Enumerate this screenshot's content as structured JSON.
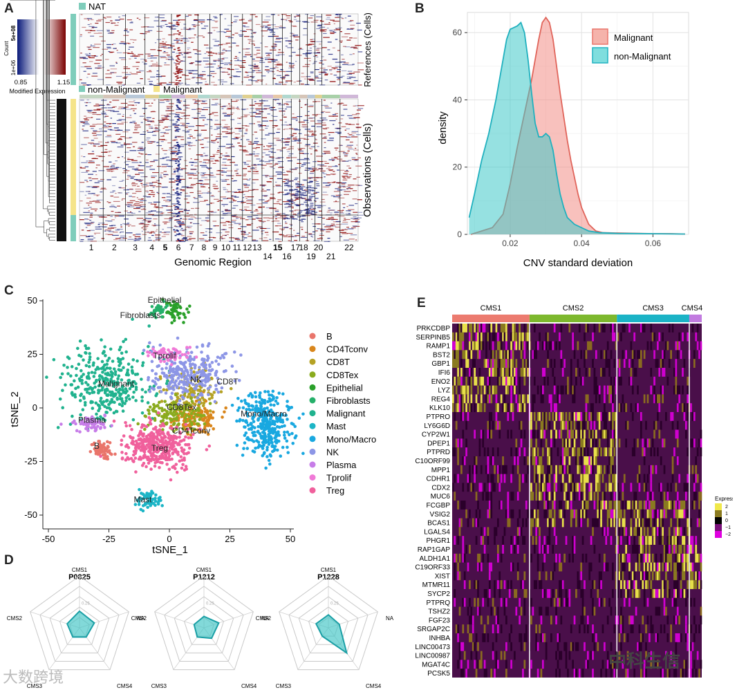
{
  "panels": {
    "a": "A",
    "b": "B",
    "c": "C",
    "d": "D",
    "e": "E"
  },
  "panelA": {
    "ref_group": "NAT",
    "obs_groups": [
      "non-Malignant",
      "Malignant"
    ],
    "colorkey": {
      "count_label": "Count",
      "count_hi": "5e+08",
      "count_lo": "1e+06",
      "min": "0.85",
      "max": "1.15",
      "label": "Modified Expression"
    },
    "ylabel_ref": "References (Cells)",
    "ylabel_obs": "Observations (Cells)",
    "xlabel": "Genomic Region",
    "chromosomes": [
      "1",
      "2",
      "3",
      "4",
      "5",
      "6",
      "7",
      "8",
      "9",
      "10",
      "11",
      "12",
      "13",
      "14",
      "15",
      "16",
      "17",
      "18",
      "19",
      "20",
      "21",
      "22"
    ],
    "bold_chromosomes": [
      "5",
      "15"
    ],
    "colors": {
      "nat": "#7fcdbb",
      "malignant": "#f5e48a",
      "high": "#8b0000",
      "low": "#1a237e"
    }
  },
  "chart_data": [
    {
      "id": "B",
      "type": "area",
      "title": "",
      "xlabel": "CNV standard deviation",
      "ylabel": "density",
      "xlim": [
        0.008,
        0.07
      ],
      "ylim": [
        0,
        66
      ],
      "xticks": [
        0.02,
        0.04,
        0.06
      ],
      "xtick_labels": [
        "0.02",
        "0.04",
        "0.06"
      ],
      "yticks": [
        0,
        20,
        40,
        60
      ],
      "legend_position": "top-right",
      "series": [
        {
          "name": "Malignant",
          "color": "#f08080",
          "x": [
            0.009,
            0.012,
            0.015,
            0.018,
            0.02,
            0.022,
            0.024,
            0.026,
            0.027,
            0.028,
            0.029,
            0.03,
            0.031,
            0.032,
            0.033,
            0.034,
            0.035,
            0.036,
            0.037,
            0.038,
            0.039,
            0.04,
            0.042,
            0.044,
            0.046,
            0.05,
            0.055,
            0.06,
            0.065,
            0.069
          ],
          "y": [
            0,
            1,
            2,
            6,
            15,
            26,
            36,
            46,
            52,
            58,
            63,
            64.5,
            63,
            58,
            50,
            42,
            35,
            28,
            22,
            17,
            12,
            8,
            3,
            1,
            0.5,
            0.4,
            0.3,
            0.2,
            0.2,
            0.1
          ]
        },
        {
          "name": "non-Malignant",
          "color": "#40c8c8",
          "x": [
            0.0085,
            0.01,
            0.012,
            0.014,
            0.016,
            0.018,
            0.019,
            0.02,
            0.021,
            0.022,
            0.023,
            0.024,
            0.025,
            0.026,
            0.027,
            0.028,
            0.029,
            0.03,
            0.031,
            0.032,
            0.033,
            0.034,
            0.035,
            0.036,
            0.038,
            0.04,
            0.042,
            0.045,
            0.05,
            0.06,
            0.069
          ],
          "y": [
            5,
            12,
            22,
            30,
            40,
            52,
            58,
            61,
            61.5,
            62,
            63,
            60,
            52,
            42,
            33,
            29,
            29,
            30,
            29,
            25,
            18,
            12,
            8,
            5,
            3,
            2,
            1,
            0.5,
            0.3,
            0.2,
            0.1
          ]
        }
      ]
    },
    {
      "id": "C",
      "type": "scatter",
      "title": "",
      "xlabel": "tSNE_1",
      "ylabel": "tSNE_2",
      "xlim": [
        -52,
        52
      ],
      "ylim": [
        -53,
        55
      ],
      "xticks": [
        -50,
        -25,
        0,
        25,
        50
      ],
      "yticks": [
        -50,
        -25,
        0,
        25,
        50
      ],
      "legend_position": "right",
      "series": [
        {
          "name": "B",
          "color": "#e9756b",
          "cx": -28,
          "cy": -19,
          "sx": 1.8,
          "sy": 2.2,
          "n": 70
        },
        {
          "name": "CD4Tconv",
          "color": "#d9861c",
          "cx": 10,
          "cy": -5,
          "sx": 5,
          "sy": 4,
          "n": 140
        },
        {
          "name": "CD8T",
          "color": "#b5a225",
          "cx": 10,
          "cy": 8,
          "sx": 6,
          "sy": 5,
          "n": 120
        },
        {
          "name": "CD8Tex",
          "color": "#8aab1e",
          "cx": 2,
          "cy": -3,
          "sx": 6,
          "sy": 4,
          "n": 140
        },
        {
          "name": "Epithelial",
          "color": "#2aa02a",
          "cx": 2,
          "cy": 45,
          "sx": 2.5,
          "sy": 2,
          "n": 50
        },
        {
          "name": "Fibroblasts",
          "color": "#25b06a",
          "cx": -5,
          "cy": 46,
          "sx": 1.6,
          "sy": 1.6,
          "n": 35
        },
        {
          "name": "Malignant",
          "color": "#20b28e",
          "cx": -26,
          "cy": 12,
          "sx": 9,
          "sy": 9,
          "n": 330
        },
        {
          "name": "Mast",
          "color": "#1cb5c6",
          "cx": -8,
          "cy": -43,
          "sx": 2.5,
          "sy": 2,
          "n": 60
        },
        {
          "name": "Mono/Macro",
          "color": "#19a8e0",
          "cx": 40,
          "cy": -8,
          "sx": 5,
          "sy": 7,
          "n": 330
        },
        {
          "name": "NK",
          "color": "#8d96e6",
          "cx": 8,
          "cy": 16,
          "sx": 8,
          "sy": 6,
          "n": 280
        },
        {
          "name": "Plasma",
          "color": "#c77de8",
          "cx": -32,
          "cy": -7,
          "sx": 3,
          "sy": 1.5,
          "n": 70
        },
        {
          "name": "Tprolif",
          "color": "#f07ad7",
          "cx": 0,
          "cy": 25,
          "sx": 4,
          "sy": 2,
          "n": 60
        },
        {
          "name": "Treg",
          "color": "#f0609c",
          "cx": -5,
          "cy": -18,
          "sx": 7,
          "sy": 5,
          "n": 360
        }
      ],
      "annotations": [
        {
          "text": "Epithelial",
          "x": -2,
          "y": 49
        },
        {
          "text": "Fibroblasts",
          "x": -12,
          "y": 42
        },
        {
          "text": "Tprolif",
          "x": -2,
          "y": 23
        },
        {
          "text": "Malignant",
          "x": -22,
          "y": 10
        },
        {
          "text": "NK",
          "x": 11,
          "y": 12
        },
        {
          "text": "CD8T",
          "x": 24,
          "y": 11
        },
        {
          "text": "CD8Tex",
          "x": 5,
          "y": -1
        },
        {
          "text": "Plasma",
          "x": -32,
          "y": -7
        },
        {
          "text": "Mono/Macro",
          "x": 39,
          "y": -4
        },
        {
          "text": "CD4Tconv",
          "x": 9,
          "y": -12
        },
        {
          "text": "B",
          "x": -30,
          "y": -19
        },
        {
          "text": "Treg",
          "x": -4,
          "y": -20
        },
        {
          "text": "Mast",
          "x": -11,
          "y": -44
        }
      ]
    },
    {
      "id": "D",
      "type": "radar",
      "axes": [
        "CMS1",
        "NA",
        "CMS4",
        "CMS3",
        "CMS2"
      ],
      "gridlabel": "0.25",
      "color": "#3fc4c4",
      "charts": [
        {
          "title": "P0825",
          "values": [
            0.32,
            0.3,
            0.22,
            0.22,
            0.25
          ]
        },
        {
          "title": "P1212",
          "values": [
            0.22,
            0.3,
            0.25,
            0.22,
            0.2
          ]
        },
        {
          "title": "P1228",
          "values": [
            0.25,
            0.22,
            0.6,
            0.2,
            0.25
          ]
        }
      ]
    },
    {
      "id": "E",
      "type": "heatmap",
      "groups": [
        {
          "name": "CMS1",
          "color": "#ec7b6f",
          "span": 0.31
        },
        {
          "name": "CMS2",
          "color": "#7db82e",
          "span": 0.35
        },
        {
          "name": "CMS3",
          "color": "#1bb3c6",
          "span": 0.29
        },
        {
          "name": "CMS4",
          "color": "#c27be0",
          "span": 0.03
        }
      ],
      "genes": [
        "PRKCDBP",
        "SERPINB5",
        "RAMP1",
        "BST2",
        "GBP1",
        "IFI6",
        "ENO2",
        "LYZ",
        "REG4",
        "KLK10",
        "PTPRO",
        "LY6G6D",
        "CYP2W1",
        "DPEP1",
        "PTPRD",
        "C10ORF99",
        "MPP1",
        "CDHR1",
        "CDX2",
        "MUC6",
        "FCGBP",
        "VSIG2",
        "BCAS1",
        "LGALS4",
        "PHGR1",
        "RAP1GAP",
        "ALDH1A1",
        "C19ORF33",
        "XIST",
        "MTMR11",
        "SYCP2",
        "PTPRQ",
        "TSHZ2",
        "FGF23",
        "SRGAP2C",
        "INHBA",
        "LINC00473",
        "LINC00987",
        "MGAT4C",
        "PCSK5"
      ],
      "legend": {
        "title": "Expression",
        "ticks": [
          "2",
          "1",
          "0",
          "−1",
          "−2"
        ]
      }
    }
  ],
  "watermarks": {
    "left": "大数跨境",
    "right": "中科生信"
  }
}
